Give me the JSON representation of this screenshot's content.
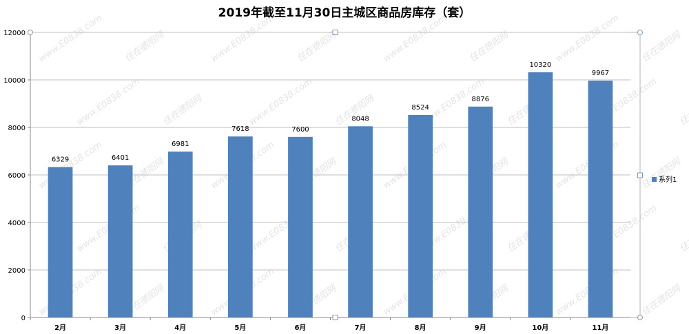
{
  "chart_data": {
    "type": "bar",
    "title": "2019年截至11月30日主城区商品房库存（套）",
    "categories": [
      "2月",
      "3月",
      "4月",
      "5月",
      "6月",
      "7月",
      "8月",
      "9月",
      "10月",
      "11月"
    ],
    "series": [
      {
        "name": "系列1",
        "values": [
          6329,
          6401,
          6981,
          7618,
          7600,
          8048,
          8524,
          8876,
          10320,
          9967
        ],
        "color": "#4f81bd"
      }
    ],
    "yticks": [
      0,
      2000,
      4000,
      6000,
      8000,
      10000,
      12000
    ],
    "ylim": [
      0,
      12000
    ],
    "grid": true,
    "legend": "right",
    "data_labels": true
  },
  "watermark": {
    "texts": [
      "www.E0838.com",
      "住在德阳网"
    ]
  }
}
